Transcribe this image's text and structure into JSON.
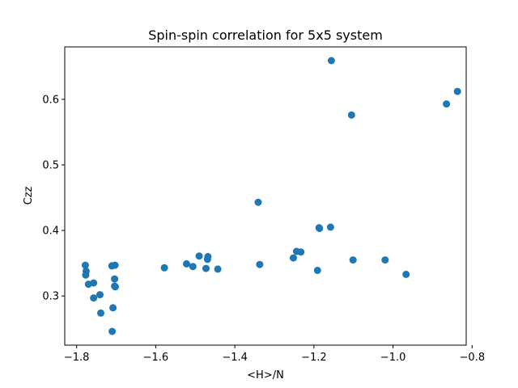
{
  "chart_data": {
    "type": "scatter",
    "title": "Spin-spin correlation for 5x5 system",
    "xlabel": "<H>/N",
    "ylabel": "Czz",
    "xlim": [
      -1.83,
      -0.815
    ],
    "ylim": [
      0.225,
      0.68
    ],
    "xticks": [
      -1.8,
      -1.6,
      -1.4,
      -1.2,
      -1.0,
      -0.8
    ],
    "xtick_labels": [
      "−1.8",
      "−1.6",
      "−1.4",
      "−1.2",
      "−1.0",
      "−0.8"
    ],
    "yticks": [
      0.3,
      0.4,
      0.5,
      0.6
    ],
    "ytick_labels": [
      "0.3",
      "0.4",
      "0.5",
      "0.6"
    ],
    "grid": false,
    "marker_color": "#1f77b4",
    "points": [
      {
        "x": -1.778,
        "y": 0.347
      },
      {
        "x": -1.776,
        "y": 0.338
      },
      {
        "x": -1.777,
        "y": 0.332
      },
      {
        "x": -1.77,
        "y": 0.318
      },
      {
        "x": -1.757,
        "y": 0.32
      },
      {
        "x": -1.757,
        "y": 0.297
      },
      {
        "x": -1.741,
        "y": 0.302
      },
      {
        "x": -1.739,
        "y": 0.274
      },
      {
        "x": -1.711,
        "y": 0.346
      },
      {
        "x": -1.703,
        "y": 0.347
      },
      {
        "x": -1.704,
        "y": 0.326
      },
      {
        "x": -1.704,
        "y": 0.315
      },
      {
        "x": -1.702,
        "y": 0.314
      },
      {
        "x": -1.708,
        "y": 0.282
      },
      {
        "x": -1.71,
        "y": 0.246
      },
      {
        "x": -1.578,
        "y": 0.343
      },
      {
        "x": -1.522,
        "y": 0.349
      },
      {
        "x": -1.506,
        "y": 0.345
      },
      {
        "x": -1.49,
        "y": 0.361
      },
      {
        "x": -1.468,
        "y": 0.36
      },
      {
        "x": -1.469,
        "y": 0.356
      },
      {
        "x": -1.473,
        "y": 0.342
      },
      {
        "x": -1.443,
        "y": 0.341
      },
      {
        "x": -1.341,
        "y": 0.443
      },
      {
        "x": -1.337,
        "y": 0.348
      },
      {
        "x": -1.252,
        "y": 0.358
      },
      {
        "x": -1.244,
        "y": 0.368
      },
      {
        "x": -1.233,
        "y": 0.367
      },
      {
        "x": -1.187,
        "y": 0.404
      },
      {
        "x": -1.186,
        "y": 0.403
      },
      {
        "x": -1.191,
        "y": 0.339
      },
      {
        "x": -1.158,
        "y": 0.405
      },
      {
        "x": -1.156,
        "y": 0.659
      },
      {
        "x": -1.105,
        "y": 0.576
      },
      {
        "x": -1.101,
        "y": 0.355
      },
      {
        "x": -1.02,
        "y": 0.355
      },
      {
        "x": -0.967,
        "y": 0.333
      },
      {
        "x": -0.865,
        "y": 0.593
      },
      {
        "x": -0.837,
        "y": 0.612
      }
    ]
  }
}
